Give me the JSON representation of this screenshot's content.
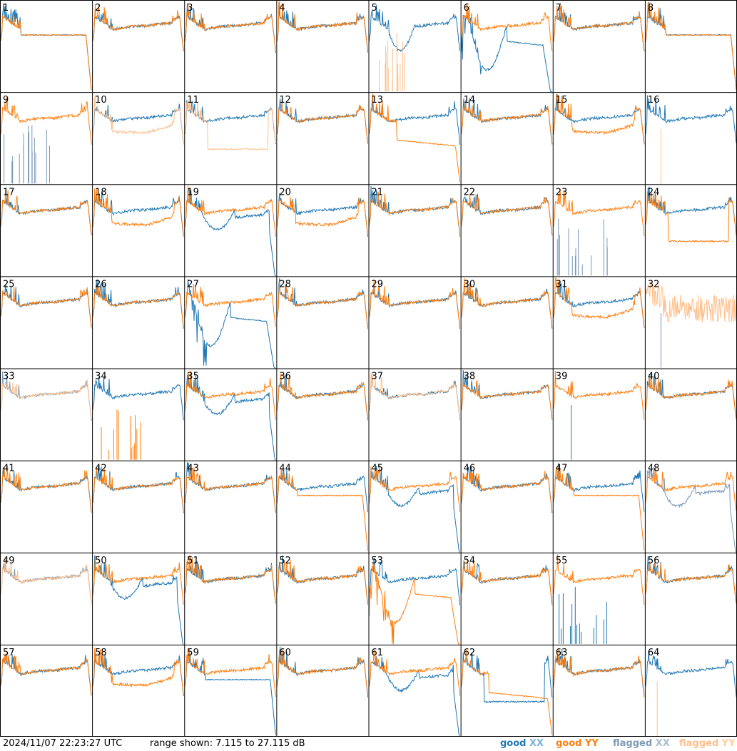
{
  "footer": {
    "timestamp": "2024/11/07 22:23:27 UTC",
    "range_text": "range shown: 7.115 to 27.115 dB"
  },
  "legend": [
    {
      "label_a": "good ",
      "label_b": "XX",
      "color_a": "#1f77b4",
      "color_b": "#7fb2d8",
      "key": "good_xx"
    },
    {
      "label_a": "good ",
      "label_b": "YY",
      "color_a": "#ff7f0e",
      "color_b": "#ff7f0e",
      "key": "good_yy"
    },
    {
      "label_a": "flagged ",
      "label_b": "XX",
      "color_a": "#7f9bb5",
      "color_b": "#aabfd2",
      "key": "flagged_xx"
    },
    {
      "label_a": "flagged ",
      "label_b": "YY",
      "color_a": "#ffbf8a",
      "color_b": "#ffcc9e",
      "key": "flagged_yy"
    }
  ],
  "colors": {
    "good_xx": "#1f77b4",
    "good_yy": "#ff7f0e",
    "flagged_xx": "#7a98b8",
    "flagged_yy": "#ffc08c",
    "grid": "#000000"
  },
  "chart_data": {
    "type": "line",
    "title": "",
    "ylim": [
      7.115,
      27.115
    ],
    "y_unit": "dB",
    "panel_count": 64,
    "panels": [
      {
        "id": "1",
        "xx": "good",
        "yy": "good",
        "xx_shape": "flat_drop",
        "yy_shape": "flat_drop"
      },
      {
        "id": "2",
        "xx": "good",
        "yy": "good",
        "xx_shape": "normal",
        "yy_shape": "normal"
      },
      {
        "id": "3",
        "xx": "good",
        "yy": "good",
        "xx_shape": "normal",
        "yy_shape": "normal"
      },
      {
        "id": "4",
        "xx": "good",
        "yy": "good",
        "xx_shape": "normal",
        "yy_shape": "normal"
      },
      {
        "id": "5",
        "xx": "good",
        "yy": "flagged",
        "xx_shape": "dip",
        "yy_shape": "spiky_low"
      },
      {
        "id": "6",
        "xx": "good",
        "yy": "good",
        "xx_shape": "deep_dip_drop",
        "yy_shape": "normal"
      },
      {
        "id": "7",
        "xx": "good",
        "yy": "good",
        "xx_shape": "normal",
        "yy_shape": "normal"
      },
      {
        "id": "8",
        "xx": "good",
        "yy": "good",
        "xx_shape": "flat_drop",
        "yy_shape": "flat_drop"
      },
      {
        "id": "9",
        "xx": "flagged",
        "yy": "good",
        "xx_shape": "spiky_low",
        "yy_shape": "normal"
      },
      {
        "id": "10",
        "xx": "good",
        "yy": "flagged",
        "xx_shape": "normal",
        "yy_shape": "sag"
      },
      {
        "id": "11",
        "xx": "good",
        "yy": "flagged",
        "xx_shape": "normal",
        "yy_shape": "low_flat"
      },
      {
        "id": "12",
        "xx": "good",
        "yy": "good",
        "xx_shape": "normal",
        "yy_shape": "normal"
      },
      {
        "id": "13",
        "xx": "good",
        "yy": "good",
        "xx_shape": "normal",
        "yy_shape": "low_drop"
      },
      {
        "id": "14",
        "xx": "good",
        "yy": "good",
        "xx_shape": "normal",
        "yy_shape": "normal"
      },
      {
        "id": "15",
        "xx": "good",
        "yy": "good",
        "xx_shape": "normal",
        "yy_shape": "sag"
      },
      {
        "id": "16",
        "xx": "good",
        "yy": "flagged",
        "xx_shape": "normal",
        "yy_shape": "single_spike"
      },
      {
        "id": "17",
        "xx": "good",
        "yy": "good",
        "xx_shape": "normal",
        "yy_shape": "normal"
      },
      {
        "id": "18",
        "xx": "good",
        "yy": "good",
        "xx_shape": "normal",
        "yy_shape": "sag"
      },
      {
        "id": "19",
        "xx": "good",
        "yy": "good",
        "xx_shape": "dip_drop",
        "yy_shape": "normal"
      },
      {
        "id": "20",
        "xx": "good",
        "yy": "good",
        "xx_shape": "normal",
        "yy_shape": "sag"
      },
      {
        "id": "21",
        "xx": "good",
        "yy": "good",
        "xx_shape": "normal",
        "yy_shape": "normal"
      },
      {
        "id": "22",
        "xx": "good",
        "yy": "good",
        "xx_shape": "normal",
        "yy_shape": "normal"
      },
      {
        "id": "23",
        "xx": "flagged",
        "yy": "good",
        "xx_shape": "spiky_low",
        "yy_shape": "normal"
      },
      {
        "id": "24",
        "xx": "good",
        "yy": "good",
        "xx_shape": "normal",
        "yy_shape": "low_flat"
      },
      {
        "id": "25",
        "xx": "good",
        "yy": "good",
        "xx_shape": "normal",
        "yy_shape": "normal"
      },
      {
        "id": "26",
        "xx": "good",
        "yy": "good",
        "xx_shape": "normal",
        "yy_shape": "normal"
      },
      {
        "id": "27",
        "xx": "good",
        "yy": "good",
        "xx_shape": "deep_dip_drop",
        "yy_shape": "normal"
      },
      {
        "id": "28",
        "xx": "good",
        "yy": "good",
        "xx_shape": "normal",
        "yy_shape": "normal"
      },
      {
        "id": "29",
        "xx": "good",
        "yy": "good",
        "xx_shape": "normal",
        "yy_shape": "normal"
      },
      {
        "id": "30",
        "xx": "good",
        "yy": "good",
        "xx_shape": "normal",
        "yy_shape": "normal"
      },
      {
        "id": "31",
        "xx": "good",
        "yy": "good",
        "xx_shape": "normal",
        "yy_shape": "sag"
      },
      {
        "id": "32",
        "xx": "flagged",
        "yy": "flagged",
        "xx_shape": "single_spike",
        "yy_shape": "noisy_high"
      },
      {
        "id": "33",
        "xx": "flagged",
        "yy": "flagged",
        "xx_shape": "normal",
        "yy_shape": "normal"
      },
      {
        "id": "34",
        "xx": "good",
        "yy": "good",
        "xx_shape": "normal",
        "yy_shape": "spiky_low"
      },
      {
        "id": "35",
        "xx": "good",
        "yy": "good",
        "xx_shape": "dip_drop",
        "yy_shape": "normal"
      },
      {
        "id": "36",
        "xx": "good",
        "yy": "good",
        "xx_shape": "normal",
        "yy_shape": "normal"
      },
      {
        "id": "37",
        "xx": "good",
        "yy": "flagged",
        "xx_shape": "normal",
        "yy_shape": "normal"
      },
      {
        "id": "38",
        "xx": "good",
        "yy": "good",
        "xx_shape": "normal",
        "yy_shape": "normal"
      },
      {
        "id": "39",
        "xx": "good",
        "yy": "good",
        "xx_shape": "single_spike",
        "yy_shape": "normal"
      },
      {
        "id": "40",
        "xx": "good",
        "yy": "good",
        "xx_shape": "normal",
        "yy_shape": "normal"
      },
      {
        "id": "41",
        "xx": "good",
        "yy": "good",
        "xx_shape": "normal",
        "yy_shape": "normal"
      },
      {
        "id": "42",
        "xx": "good",
        "yy": "good",
        "xx_shape": "normal",
        "yy_shape": "normal"
      },
      {
        "id": "43",
        "xx": "good",
        "yy": "good",
        "xx_shape": "normal",
        "yy_shape": "normal"
      },
      {
        "id": "44",
        "xx": "good",
        "yy": "good",
        "xx_shape": "normal",
        "yy_shape": "flat_drop"
      },
      {
        "id": "45",
        "xx": "good",
        "yy": "good",
        "xx_shape": "dip_drop",
        "yy_shape": "normal"
      },
      {
        "id": "46",
        "xx": "good",
        "yy": "good",
        "xx_shape": "normal",
        "yy_shape": "normal"
      },
      {
        "id": "47",
        "xx": "good",
        "yy": "good",
        "xx_shape": "normal",
        "yy_shape": "flat_drop"
      },
      {
        "id": "48",
        "xx": "flagged",
        "yy": "good",
        "xx_shape": "dip_drop",
        "yy_shape": "normal"
      },
      {
        "id": "49",
        "xx": "flagged",
        "yy": "flagged",
        "xx_shape": "normal",
        "yy_shape": "normal"
      },
      {
        "id": "50",
        "xx": "good",
        "yy": "good",
        "xx_shape": "dip_drop",
        "yy_shape": "normal"
      },
      {
        "id": "51",
        "xx": "good",
        "yy": "good",
        "xx_shape": "normal",
        "yy_shape": "normal"
      },
      {
        "id": "52",
        "xx": "good",
        "yy": "good",
        "xx_shape": "normal",
        "yy_shape": "normal"
      },
      {
        "id": "53",
        "xx": "good",
        "yy": "good",
        "xx_shape": "normal",
        "yy_shape": "deep_dip_drop"
      },
      {
        "id": "54",
        "xx": "good",
        "yy": "good",
        "xx_shape": "normal",
        "yy_shape": "normal"
      },
      {
        "id": "55",
        "xx": "good",
        "yy": "good",
        "xx_shape": "spiky_low",
        "yy_shape": "normal"
      },
      {
        "id": "56",
        "xx": "good",
        "yy": "good",
        "xx_shape": "normal",
        "yy_shape": "normal"
      },
      {
        "id": "57",
        "xx": "good",
        "yy": "good",
        "xx_shape": "normal",
        "yy_shape": "normal"
      },
      {
        "id": "58",
        "xx": "good",
        "yy": "good",
        "xx_shape": "normal",
        "yy_shape": "sag"
      },
      {
        "id": "59",
        "xx": "good",
        "yy": "good",
        "xx_shape": "flat_drop",
        "yy_shape": "normal"
      },
      {
        "id": "60",
        "xx": "good",
        "yy": "good",
        "xx_shape": "normal",
        "yy_shape": "normal"
      },
      {
        "id": "61",
        "xx": "good",
        "yy": "good",
        "xx_shape": "dip_drop",
        "yy_shape": "normal"
      },
      {
        "id": "62",
        "xx": "good",
        "yy": "good",
        "xx_shape": "low_flat",
        "yy_shape": "low_drop"
      },
      {
        "id": "63",
        "xx": "good",
        "yy": "good",
        "xx_shape": "normal",
        "yy_shape": "normal"
      },
      {
        "id": "64",
        "xx": "good",
        "yy": "flagged",
        "xx_shape": "normal",
        "yy_shape": "single_spike"
      }
    ]
  }
}
